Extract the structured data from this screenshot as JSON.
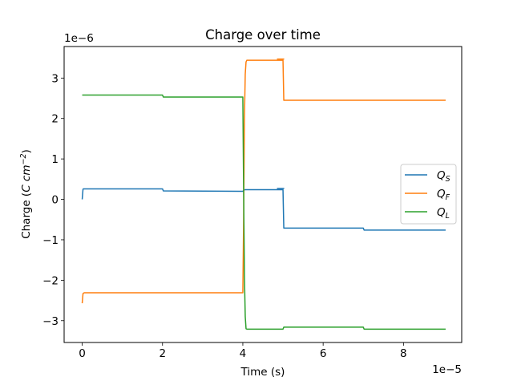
{
  "chart_data": {
    "type": "line",
    "title": "Charge over time",
    "xlabel": "Time (s)",
    "ylabel_prefix": "Charge (",
    "ylabel_unit_c": "C cm",
    "ylabel_exp": "−2",
    "ylabel_suffix": ")",
    "x_offset_text": "1e−5",
    "y_offset_text": "1e−6",
    "x_scale": 1e-05,
    "y_scale": 1e-06,
    "xlim": [
      -0.45,
      9.45
    ],
    "ylim": [
      -3.54,
      3.78
    ],
    "xticks": [
      0,
      2,
      4,
      6,
      8
    ],
    "xtick_labels": [
      "0",
      "2",
      "4",
      "6",
      "8"
    ],
    "yticks": [
      -3,
      -2,
      -1,
      0,
      1,
      2,
      3
    ],
    "ytick_labels": [
      "−3",
      "−2",
      "−1",
      "0",
      "1",
      "2",
      "3"
    ],
    "grid": false,
    "legend_position": "center-right",
    "series": [
      {
        "name": "Q",
        "sub": "S",
        "color": "#1f77b4",
        "x": [
          0,
          0.02,
          0.03,
          2.0,
          2.02,
          4.0,
          4.05,
          5.0,
          5.02,
          7.0,
          7.02,
          9.05
        ],
        "y": [
          0.0,
          0.25,
          0.26,
          0.26,
          0.21,
          0.2,
          0.24,
          0.24,
          -0.71,
          -0.71,
          -0.76,
          -0.76
        ]
      },
      {
        "name": "Q",
        "sub": "F",
        "color": "#ff7f0e",
        "x": [
          0,
          0.02,
          0.05,
          4.0,
          4.02,
          4.04,
          4.06,
          4.08,
          4.1,
          5.0,
          5.02,
          9.05
        ],
        "y": [
          -2.57,
          -2.33,
          -2.31,
          -2.31,
          -0.5,
          2.0,
          3.1,
          3.4,
          3.44,
          3.44,
          2.45,
          2.45
        ]
      },
      {
        "name": "Q",
        "sub": "L",
        "color": "#2ca02c",
        "x": [
          0,
          2.0,
          2.02,
          4.0,
          4.02,
          4.04,
          4.06,
          4.08,
          4.1,
          5.0,
          5.02,
          7.0,
          7.02,
          9.05
        ],
        "y": [
          2.58,
          2.58,
          2.53,
          2.53,
          0.2,
          -1.9,
          -2.9,
          -3.2,
          -3.21,
          -3.21,
          -3.16,
          -3.16,
          -3.21,
          -3.21
        ]
      }
    ],
    "overlay_segments": [
      {
        "color": "#1f77b4",
        "x": [
          4.85,
          5.03
        ],
        "y": [
          0.24,
          0.24
        ]
      },
      {
        "color": "#ff7f0e",
        "x": [
          4.85,
          5.03
        ],
        "y": [
          3.44,
          3.44
        ]
      }
    ]
  }
}
